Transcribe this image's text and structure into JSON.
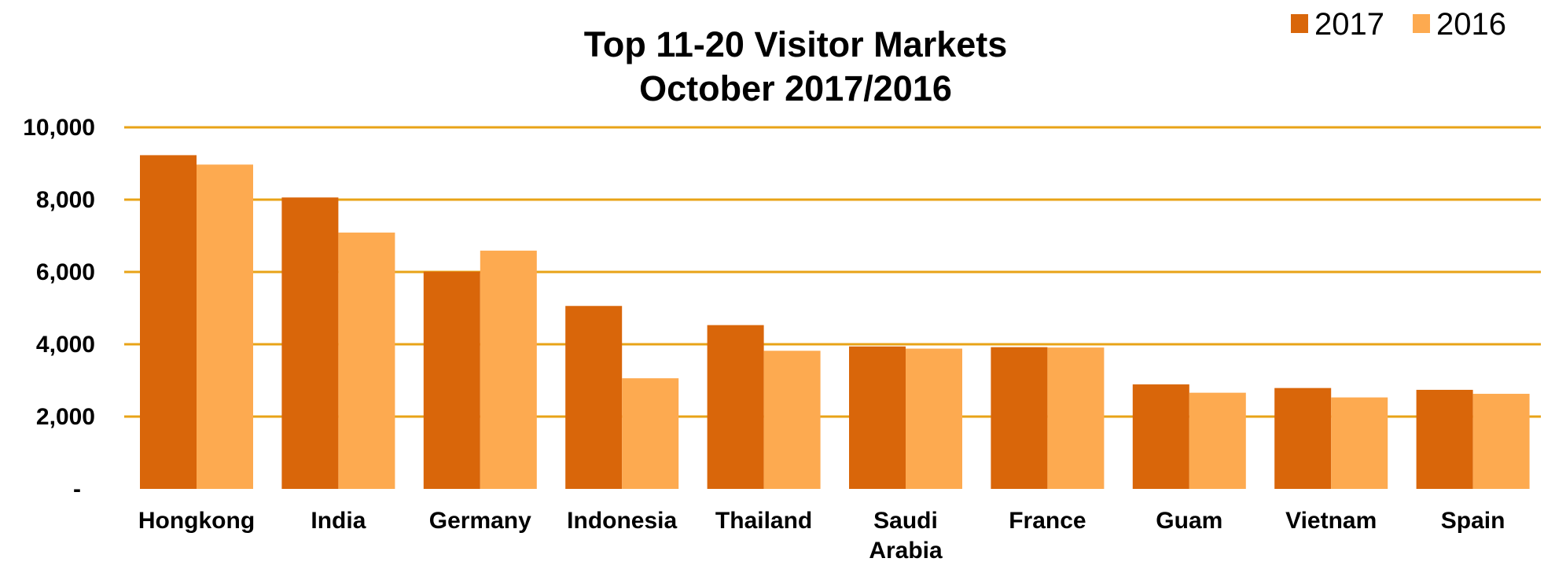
{
  "chart_data": {
    "type": "bar",
    "title": [
      "Top 11-20 Visitor Markets",
      "October 2017/2016"
    ],
    "categories": [
      [
        "Hongkong"
      ],
      [
        "India"
      ],
      [
        "Germany"
      ],
      [
        "Indonesia"
      ],
      [
        "Thailand"
      ],
      [
        "Saudi",
        "Arabia"
      ],
      [
        "France"
      ],
      [
        "Guam"
      ],
      [
        "Vietnam"
      ],
      [
        "Spain"
      ]
    ],
    "series": [
      {
        "name": "2017",
        "color": "#D9660A",
        "values": [
          9230,
          8060,
          6010,
          5060,
          4530,
          3940,
          3920,
          2890,
          2790,
          2740
        ]
      },
      {
        "name": "2016",
        "color": "#FDAA50",
        "values": [
          8970,
          7090,
          6590,
          3060,
          3820,
          3880,
          3910,
          2660,
          2530,
          2630
        ]
      }
    ],
    "ylim": [
      0,
      10000
    ],
    "yticks": [
      0,
      2000,
      4000,
      6000,
      8000,
      10000
    ],
    "ytick_labels": [
      "-",
      "2,000",
      "4,000",
      "6,000",
      "8,000",
      "10,000"
    ],
    "gridline_color": "#E8A317",
    "grid": true,
    "legend_position": "top-right"
  }
}
